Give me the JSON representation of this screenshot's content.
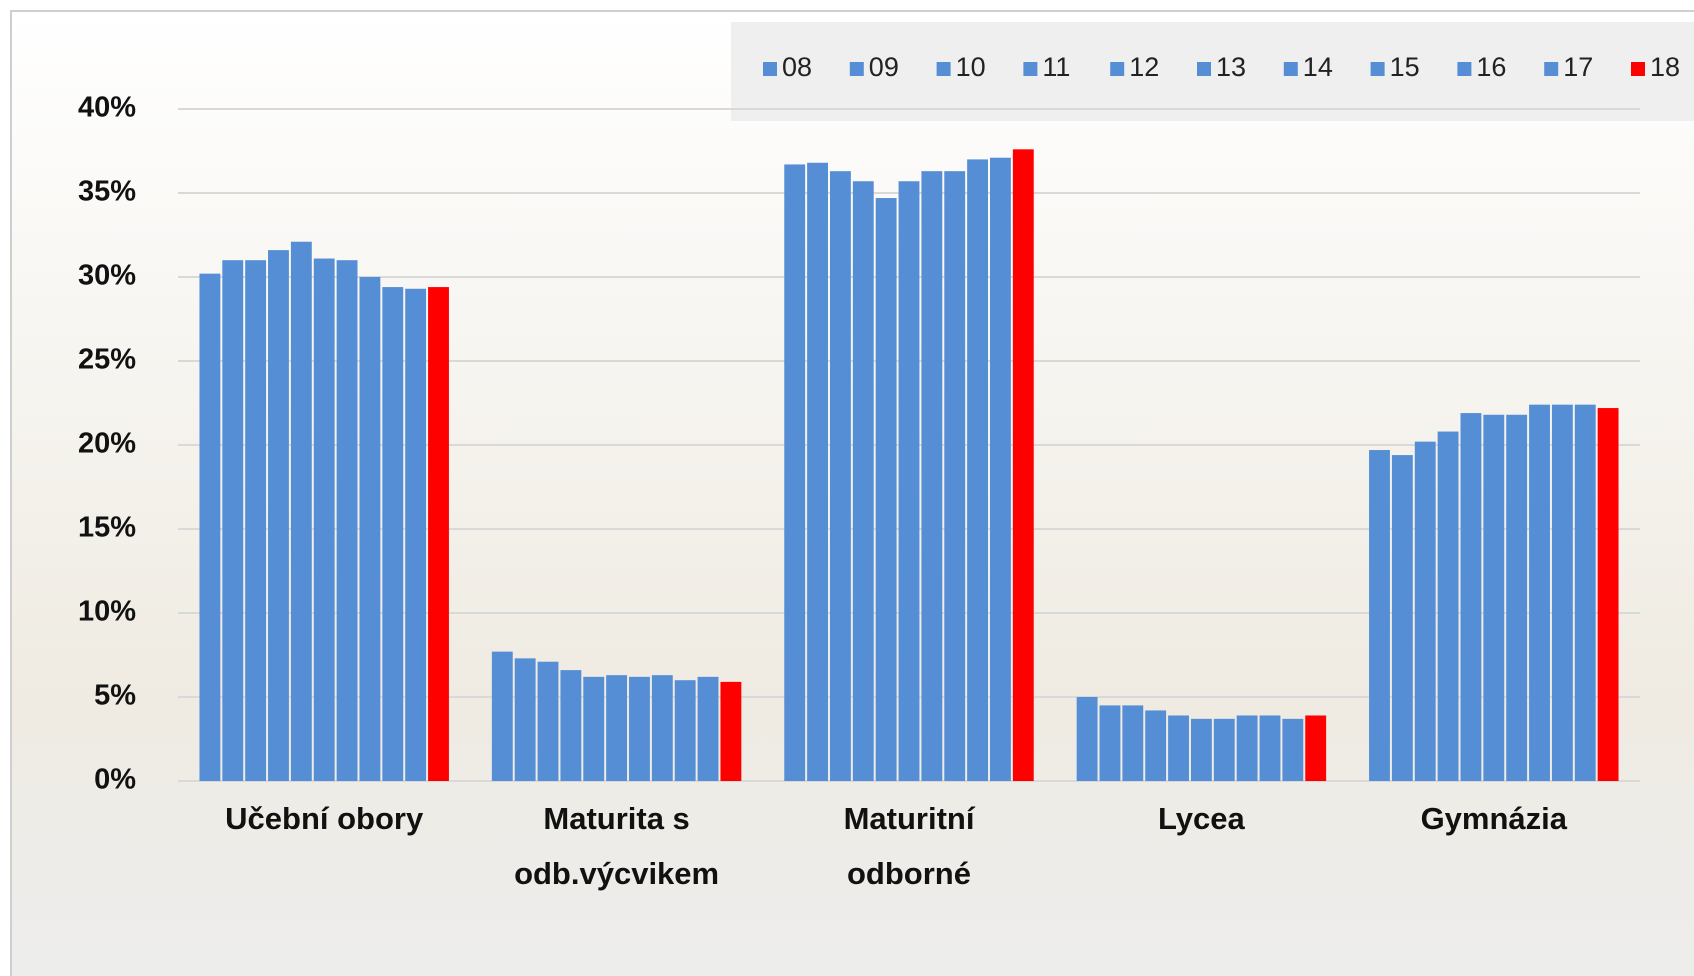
{
  "chart_data": {
    "type": "bar",
    "categories": [
      "Učební obory",
      "Maturita s odb.výcvikem",
      "Maturitní odborné",
      "Lycea",
      "Gymnázia"
    ],
    "series": [
      {
        "name": "08",
        "color": "#558ed5",
        "values": [
          30.2,
          7.7,
          36.7,
          5.0,
          19.7
        ]
      },
      {
        "name": "09",
        "color": "#558ed5",
        "values": [
          31.0,
          7.3,
          36.8,
          4.5,
          19.4
        ]
      },
      {
        "name": "10",
        "color": "#558ed5",
        "values": [
          31.0,
          7.1,
          36.3,
          4.5,
          20.2
        ]
      },
      {
        "name": "11",
        "color": "#558ed5",
        "values": [
          31.6,
          6.6,
          35.7,
          4.2,
          20.8
        ]
      },
      {
        "name": "12",
        "color": "#558ed5",
        "values": [
          32.1,
          6.2,
          34.7,
          3.9,
          21.9
        ]
      },
      {
        "name": "13",
        "color": "#558ed5",
        "values": [
          31.1,
          6.3,
          35.7,
          3.7,
          21.8
        ]
      },
      {
        "name": "14",
        "color": "#558ed5",
        "values": [
          31.0,
          6.2,
          36.3,
          3.7,
          21.8
        ]
      },
      {
        "name": "15",
        "color": "#558ed5",
        "values": [
          30.0,
          6.3,
          36.3,
          3.9,
          22.4
        ]
      },
      {
        "name": "16",
        "color": "#558ed5",
        "values": [
          29.4,
          6.0,
          37.0,
          3.9,
          22.4
        ]
      },
      {
        "name": "17",
        "color": "#558ed5",
        "values": [
          29.3,
          6.2,
          37.1,
          3.7,
          22.4
        ]
      },
      {
        "name": "18",
        "color": "#ff0000",
        "values": [
          29.4,
          5.9,
          37.6,
          3.9,
          22.2
        ]
      }
    ],
    "ylim": [
      0,
      40
    ],
    "yticks": [
      {
        "value": 0,
        "label": "0%"
      },
      {
        "value": 5,
        "label": "5%"
      },
      {
        "value": 10,
        "label": "10%"
      },
      {
        "value": 15,
        "label": "15%"
      },
      {
        "value": 20,
        "label": "20%"
      },
      {
        "value": 25,
        "label": "25%"
      },
      {
        "value": 30,
        "label": "30%"
      },
      {
        "value": 35,
        "label": "35%"
      },
      {
        "value": 40,
        "label": "40%"
      }
    ],
    "grid": true,
    "legend": "top-right"
  }
}
